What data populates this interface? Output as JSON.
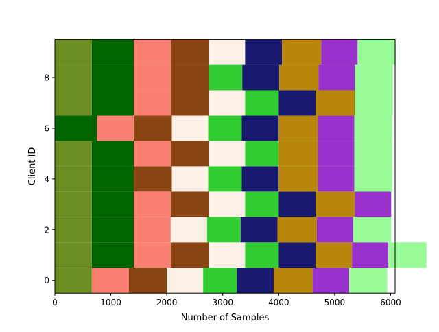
{
  "chart_data": {
    "type": "bar",
    "orientation": "horizontal-stacked",
    "title": "",
    "xlabel": "Number of Samples",
    "ylabel": "Client ID",
    "xlim": [
      0,
      6080
    ],
    "ylim": [
      -0.5,
      9.5
    ],
    "xticks": [
      0,
      1000,
      2000,
      3000,
      4000,
      5000,
      6000
    ],
    "yticks": [
      0,
      2,
      4,
      6,
      8
    ],
    "grid": false,
    "legend": "none",
    "palette": [
      "#6b8e23",
      "#006400",
      "#fa8072",
      "#8b4513",
      "#faf0e6",
      "#32cd32",
      "#191970",
      "#b8860b",
      "#9932cc",
      "#98fb98"
    ],
    "clients": [
      {
        "id": 0,
        "segments": [
          {
            "class": 0,
            "value": 660
          },
          {
            "class": 2,
            "value": 660
          },
          {
            "class": 3,
            "value": 680
          },
          {
            "class": 4,
            "value": 650
          },
          {
            "class": 5,
            "value": 600
          },
          {
            "class": 6,
            "value": 660
          },
          {
            "class": 7,
            "value": 700
          },
          {
            "class": 8,
            "value": 650
          },
          {
            "class": 9,
            "value": 680
          }
        ]
      },
      {
        "id": 1,
        "segments": [
          {
            "class": 0,
            "value": 660
          },
          {
            "class": 1,
            "value": 750
          },
          {
            "class": 2,
            "value": 660
          },
          {
            "class": 3,
            "value": 680
          },
          {
            "class": 4,
            "value": 650
          },
          {
            "class": 5,
            "value": 600
          },
          {
            "class": 6,
            "value": 660
          },
          {
            "class": 7,
            "value": 650
          },
          {
            "class": 8,
            "value": 650
          },
          {
            "class": 9,
            "value": 680
          }
        ]
      },
      {
        "id": 2,
        "segments": [
          {
            "class": 0,
            "value": 660
          },
          {
            "class": 1,
            "value": 750
          },
          {
            "class": 2,
            "value": 660
          },
          {
            "class": 4,
            "value": 650
          },
          {
            "class": 5,
            "value": 600
          },
          {
            "class": 6,
            "value": 660
          },
          {
            "class": 7,
            "value": 700
          },
          {
            "class": 8,
            "value": 650
          },
          {
            "class": 9,
            "value": 680
          }
        ]
      },
      {
        "id": 3,
        "segments": [
          {
            "class": 0,
            "value": 660
          },
          {
            "class": 1,
            "value": 750
          },
          {
            "class": 2,
            "value": 660
          },
          {
            "class": 3,
            "value": 680
          },
          {
            "class": 4,
            "value": 650
          },
          {
            "class": 5,
            "value": 600
          },
          {
            "class": 6,
            "value": 660
          },
          {
            "class": 7,
            "value": 700
          },
          {
            "class": 8,
            "value": 650
          }
        ]
      },
      {
        "id": 4,
        "segments": [
          {
            "class": 0,
            "value": 660
          },
          {
            "class": 1,
            "value": 750
          },
          {
            "class": 3,
            "value": 680
          },
          {
            "class": 4,
            "value": 650
          },
          {
            "class": 5,
            "value": 600
          },
          {
            "class": 6,
            "value": 660
          },
          {
            "class": 7,
            "value": 700
          },
          {
            "class": 8,
            "value": 650
          },
          {
            "class": 9,
            "value": 680
          }
        ]
      },
      {
        "id": 5,
        "segments": [
          {
            "class": 0,
            "value": 660
          },
          {
            "class": 1,
            "value": 750
          },
          {
            "class": 2,
            "value": 660
          },
          {
            "class": 3,
            "value": 680
          },
          {
            "class": 4,
            "value": 650
          },
          {
            "class": 5,
            "value": 600
          },
          {
            "class": 7,
            "value": 700
          },
          {
            "class": 8,
            "value": 650
          },
          {
            "class": 9,
            "value": 680
          }
        ]
      },
      {
        "id": 6,
        "segments": [
          {
            "class": 1,
            "value": 750
          },
          {
            "class": 2,
            "value": 660
          },
          {
            "class": 3,
            "value": 680
          },
          {
            "class": 4,
            "value": 650
          },
          {
            "class": 5,
            "value": 600
          },
          {
            "class": 6,
            "value": 660
          },
          {
            "class": 7,
            "value": 700
          },
          {
            "class": 8,
            "value": 650
          },
          {
            "class": 9,
            "value": 680
          }
        ]
      },
      {
        "id": 7,
        "segments": [
          {
            "class": 0,
            "value": 660
          },
          {
            "class": 1,
            "value": 750
          },
          {
            "class": 2,
            "value": 660
          },
          {
            "class": 3,
            "value": 680
          },
          {
            "class": 4,
            "value": 650
          },
          {
            "class": 5,
            "value": 600
          },
          {
            "class": 6,
            "value": 660
          },
          {
            "class": 7,
            "value": 700
          },
          {
            "class": 9,
            "value": 680
          }
        ]
      },
      {
        "id": 8,
        "segments": [
          {
            "class": 0,
            "value": 660
          },
          {
            "class": 1,
            "value": 750
          },
          {
            "class": 2,
            "value": 660
          },
          {
            "class": 3,
            "value": 680
          },
          {
            "class": 5,
            "value": 600
          },
          {
            "class": 6,
            "value": 660
          },
          {
            "class": 7,
            "value": 700
          },
          {
            "class": 8,
            "value": 650
          },
          {
            "class": 9,
            "value": 680
          }
        ]
      },
      {
        "id": 9,
        "segments": [
          {
            "class": 0,
            "value": 660
          },
          {
            "class": 1,
            "value": 750
          },
          {
            "class": 2,
            "value": 660
          },
          {
            "class": 3,
            "value": 680
          },
          {
            "class": 4,
            "value": 650
          },
          {
            "class": 6,
            "value": 660
          },
          {
            "class": 7,
            "value": 700
          },
          {
            "class": 8,
            "value": 650
          },
          {
            "class": 9,
            "value": 680
          }
        ]
      }
    ]
  }
}
